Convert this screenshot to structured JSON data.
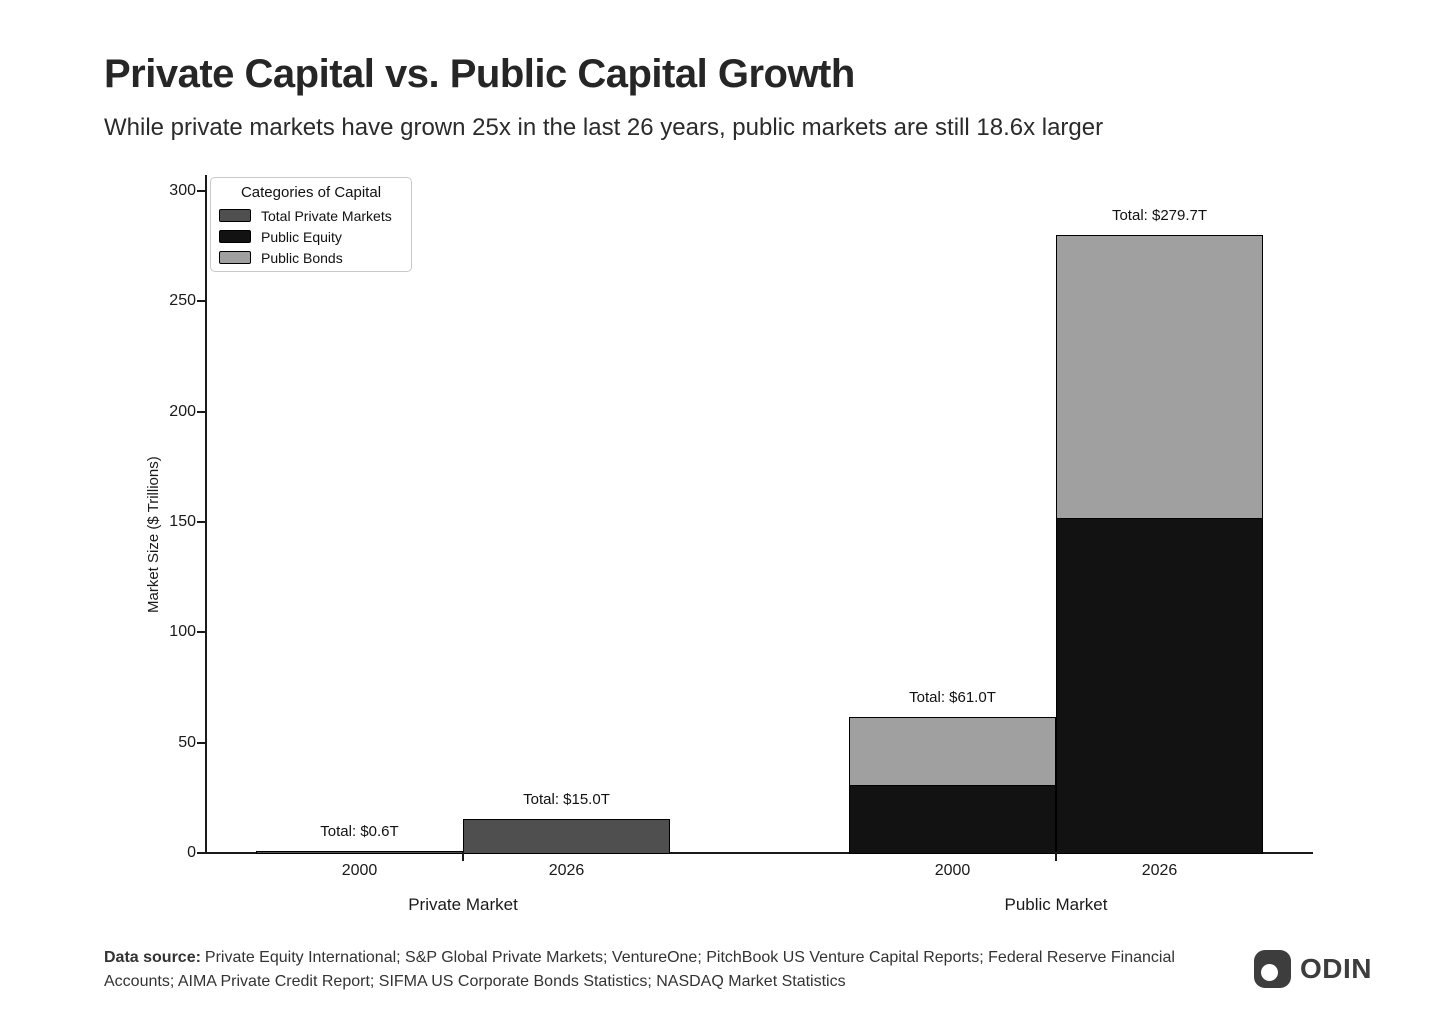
{
  "header": {
    "title": "Private Capital vs. Public Capital Growth",
    "subtitle": "While private markets have grown 25x in the last 26 years, public markets are still 18.6x larger"
  },
  "chart_data": {
    "type": "bar",
    "stacked": true,
    "ylabel": "Market Size ($ Trillions)",
    "ylim": [
      0,
      300
    ],
    "yticks": [
      0,
      50,
      100,
      150,
      200,
      250,
      300
    ],
    "legend": {
      "title": "Categories of Capital",
      "position": "top-left"
    },
    "series": [
      {
        "name": "Total Private Markets",
        "color": "#4f4f4f"
      },
      {
        "name": "Public Equity",
        "color": "#121212"
      },
      {
        "name": "Public Bonds",
        "color": "#a0a0a0"
      }
    ],
    "groups": [
      {
        "label": "Private Market",
        "bars": [
          {
            "x_label": "2000",
            "total_label": "Total: $0.6T",
            "segments": [
              {
                "series": "Total Private Markets",
                "value": 0.6
              }
            ]
          },
          {
            "x_label": "2026",
            "total_label": "Total: $15.0T",
            "segments": [
              {
                "series": "Total Private Markets",
                "value": 15.0
              }
            ]
          }
        ]
      },
      {
        "label": "Public Market",
        "bars": [
          {
            "x_label": "2000",
            "total_label": "Total: $61.0T",
            "segments": [
              {
                "series": "Public Equity",
                "value": 31.0
              },
              {
                "series": "Public Bonds",
                "value": 30.0
              }
            ]
          },
          {
            "x_label": "2026",
            "total_label": "Total: $279.7T",
            "segments": [
              {
                "series": "Public Equity",
                "value": 152.0
              },
              {
                "series": "Public Bonds",
                "value": 127.7
              }
            ]
          }
        ]
      }
    ]
  },
  "footer": {
    "source_label": "Data source:",
    "source_text": "Private Equity International; S&P Global Private Markets; VentureOne; PitchBook US Venture Capital Reports; Federal Reserve Financial Accounts; AIMA Private Credit Report; SIFMA US Corporate Bonds Statistics; NASDAQ Market Statistics",
    "logo_text": "ODIN"
  },
  "colors": {
    "axis": "#1a1a1a",
    "bar_border": "#000000",
    "text": "#262626",
    "logo": "#3d3d3d"
  }
}
